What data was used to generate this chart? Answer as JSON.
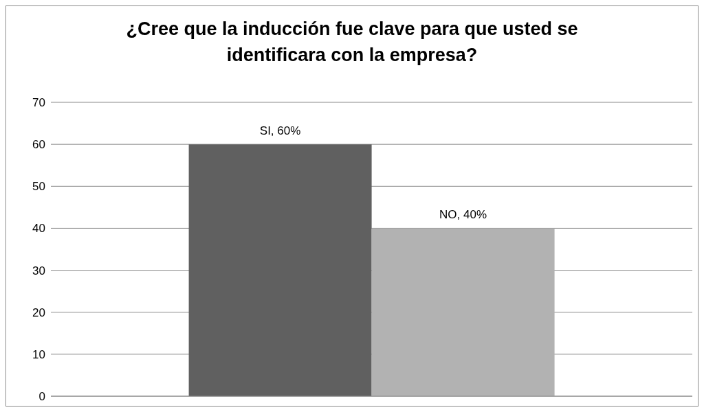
{
  "chart_data": {
    "type": "bar",
    "title": "¿Cree que la inducción fue clave para que usted se identificara con la empresa?",
    "categories": [
      null
    ],
    "series": [
      {
        "color": "#606060",
        "values": [
          60
        ],
        "value_labels": [
          "SI, 60%"
        ]
      },
      {
        "color": "#b2b2b2",
        "values": [
          40
        ],
        "value_labels": [
          "NO, 40%"
        ]
      }
    ],
    "ylim": [
      0,
      70
    ],
    "yticks": [
      0,
      10,
      20,
      30,
      40,
      50,
      60,
      70
    ],
    "grid": "y",
    "legend": false
  }
}
